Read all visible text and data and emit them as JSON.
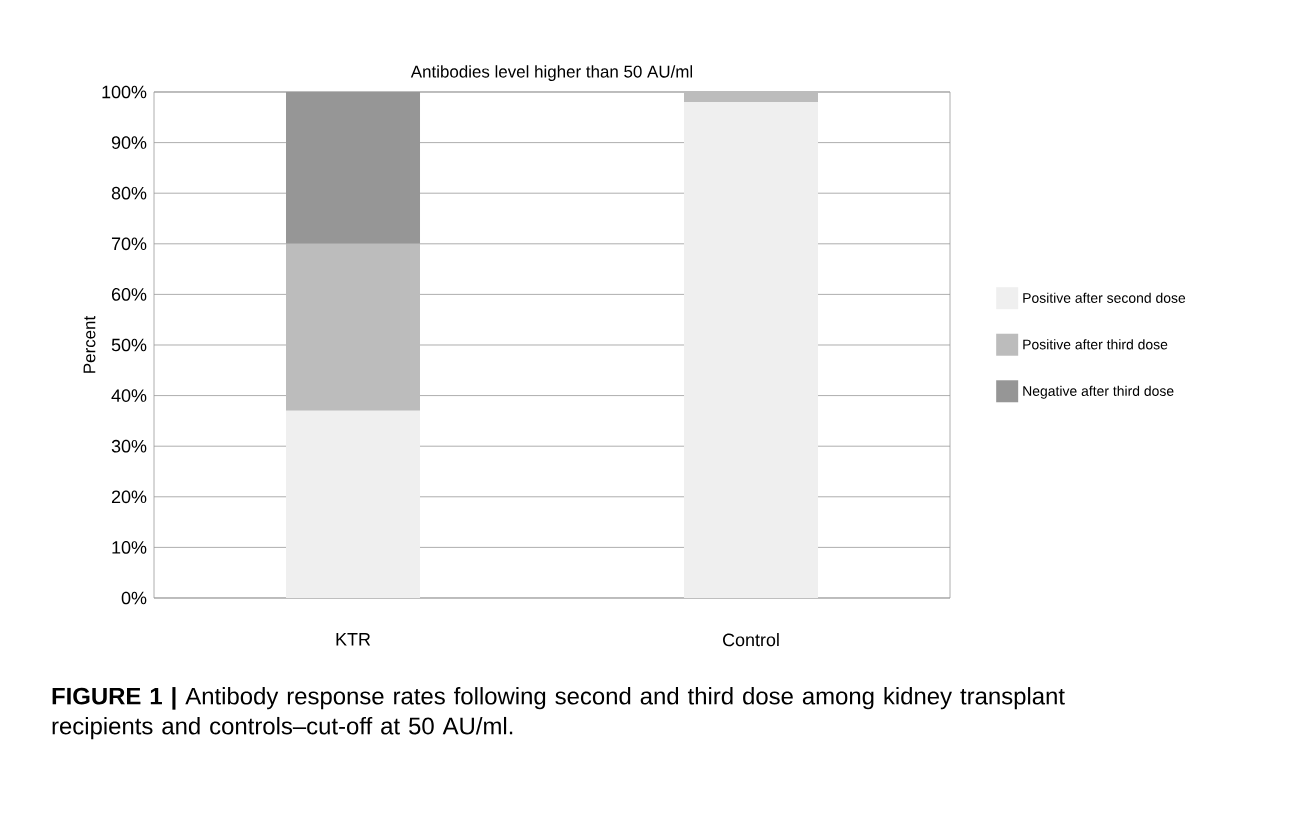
{
  "chart_data": {
    "type": "bar",
    "title": "Antibodies level higher than 50 AU/ml",
    "ylabel": "Percent",
    "categories": [
      "KTR",
      "Control"
    ],
    "series": [
      {
        "name": "Positive after second dose",
        "color": "#efefef",
        "values": [
          37,
          98
        ]
      },
      {
        "name": "Positive after third dose",
        "color": "#bcbcbc",
        "values": [
          33,
          2
        ]
      },
      {
        "name": "Negative after third dose",
        "color": "#969696",
        "values": [
          30,
          0
        ]
      }
    ],
    "stacked": true,
    "ylim": [
      0,
      100
    ],
    "yticks": [
      {
        "value": 0,
        "label": "0%"
      },
      {
        "value": 10,
        "label": "10%"
      },
      {
        "value": 20,
        "label": "20%"
      },
      {
        "value": 30,
        "label": "30%"
      },
      {
        "value": 40,
        "label": "40%"
      },
      {
        "value": 50,
        "label": "50%"
      },
      {
        "value": 60,
        "label": "60%"
      },
      {
        "value": 70,
        "label": "70%"
      },
      {
        "value": 80,
        "label": "80%"
      },
      {
        "value": 90,
        "label": "90%"
      },
      {
        "value": 100,
        "label": "100%"
      }
    ],
    "grid": "y",
    "legend": "right",
    "annotations": [
      "**FIGURE 1 |** Antibody response rates following second and third dose among kidney transplant recipients and controls–cut-off at 50 AU/ml."
    ]
  }
}
